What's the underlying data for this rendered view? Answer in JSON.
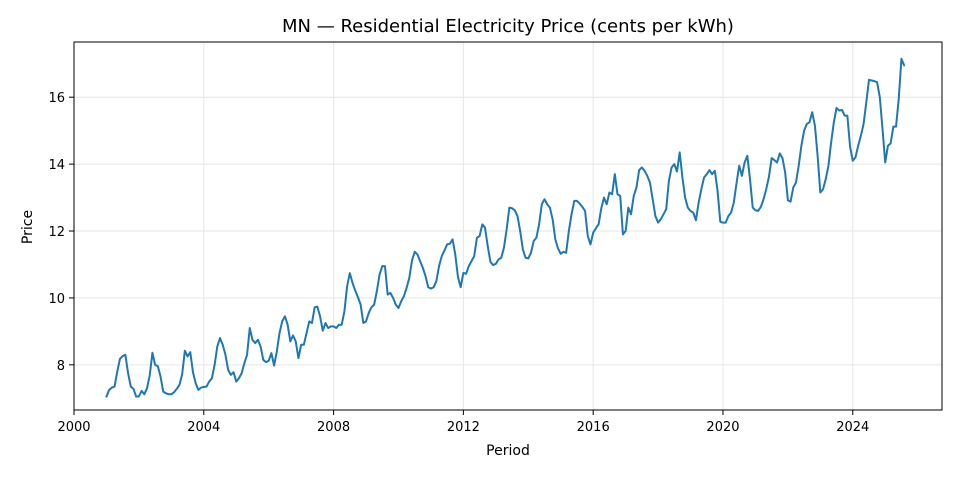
{
  "chart_data": {
    "type": "line",
    "title": "MN — Residential Electricity Price (cents per kWh)",
    "xlabel": "Period",
    "ylabel": "Price",
    "xlim": [
      "2000-01",
      "2026-10"
    ],
    "ylim": [
      6.65,
      17.65
    ],
    "xticks": [
      {
        "label": "2000",
        "value": "2000-01"
      },
      {
        "label": "2004",
        "value": "2004-01"
      },
      {
        "label": "2008",
        "value": "2008-01"
      },
      {
        "label": "2012",
        "value": "2012-01"
      },
      {
        "label": "2016",
        "value": "2016-01"
      },
      {
        "label": "2020",
        "value": "2020-01"
      },
      {
        "label": "2024",
        "value": "2024-01"
      }
    ],
    "yticks": [
      8,
      10,
      12,
      14,
      16
    ],
    "grid": true,
    "legend": "none",
    "line_color": "#1f77b4",
    "series": [
      {
        "start": "2001-01",
        "frequency": "monthly",
        "values": [
          7.05,
          7.25,
          7.32,
          7.35,
          7.8,
          8.18,
          8.26,
          8.3,
          7.75,
          7.35,
          7.28,
          7.05,
          7.06,
          7.22,
          7.12,
          7.3,
          7.68,
          8.36,
          8.0,
          7.96,
          7.65,
          7.2,
          7.15,
          7.12,
          7.12,
          7.18,
          7.28,
          7.4,
          7.72,
          8.42,
          8.25,
          8.38,
          7.78,
          7.45,
          7.25,
          7.32,
          7.34,
          7.35,
          7.5,
          7.6,
          8.0,
          8.55,
          8.8,
          8.6,
          8.3,
          7.85,
          7.7,
          7.78,
          7.5,
          7.6,
          7.75,
          8.05,
          8.3,
          9.1,
          8.75,
          8.65,
          8.75,
          8.55,
          8.15,
          8.08,
          8.12,
          8.35,
          7.98,
          8.4,
          8.95,
          9.3,
          9.45,
          9.2,
          8.7,
          8.88,
          8.7,
          8.2,
          8.6,
          8.6,
          8.95,
          9.3,
          9.25,
          9.72,
          9.74,
          9.45,
          9.02,
          9.25,
          9.1,
          9.15,
          9.15,
          9.1,
          9.2,
          9.2,
          9.6,
          10.35,
          10.74,
          10.45,
          10.22,
          10.02,
          9.8,
          9.25,
          9.3,
          9.55,
          9.72,
          9.8,
          10.2,
          10.7,
          10.95,
          10.95,
          10.1,
          10.15,
          10.0,
          9.8,
          9.7,
          9.9,
          10.05,
          10.3,
          10.6,
          11.12,
          11.38,
          11.3,
          11.1,
          10.9,
          10.65,
          10.32,
          10.28,
          10.32,
          10.5,
          10.95,
          11.25,
          11.42,
          11.6,
          11.62,
          11.75,
          11.3,
          10.62,
          10.32,
          10.75,
          10.72,
          10.95,
          11.1,
          11.25,
          11.8,
          11.85,
          12.2,
          12.1,
          11.55,
          11.08,
          10.98,
          11.02,
          11.15,
          11.2,
          11.5,
          12.05,
          12.7,
          12.68,
          12.62,
          12.45,
          12.0,
          11.45,
          11.2,
          11.18,
          11.35,
          11.7,
          11.8,
          12.2,
          12.8,
          12.95,
          12.8,
          12.7,
          12.35,
          11.75,
          11.48,
          11.32,
          11.38,
          11.35,
          12.0,
          12.5,
          12.9,
          12.9,
          12.82,
          12.72,
          12.6,
          11.85,
          11.6,
          11.95,
          12.08,
          12.2,
          12.68,
          13.0,
          12.8,
          13.15,
          13.1,
          13.7,
          13.1,
          13.05,
          11.9,
          12.0,
          12.7,
          12.5,
          13.05,
          13.3,
          13.82,
          13.9,
          13.8,
          13.65,
          13.45,
          12.95,
          12.45,
          12.25,
          12.35,
          12.5,
          12.65,
          13.5,
          13.9,
          14.0,
          13.78,
          14.35,
          13.6,
          13.0,
          12.7,
          12.6,
          12.55,
          12.32,
          12.85,
          13.25,
          13.6,
          13.7,
          13.82,
          13.7,
          13.8,
          13.2,
          12.28,
          12.25,
          12.25,
          12.45,
          12.55,
          12.85,
          13.42,
          13.95,
          13.65,
          14.05,
          14.25,
          13.55,
          12.7,
          12.62,
          12.6,
          12.72,
          12.95,
          13.25,
          13.62,
          14.18,
          14.12,
          14.05,
          14.32,
          14.18,
          13.75,
          12.92,
          12.88,
          13.3,
          13.45,
          13.95,
          14.55,
          15.0,
          15.2,
          15.25,
          15.55,
          15.15,
          14.25,
          13.15,
          13.25,
          13.55,
          13.95,
          14.65,
          15.25,
          15.68,
          15.6,
          15.62,
          15.45,
          15.45,
          14.52,
          14.1,
          14.2,
          14.55,
          14.85,
          15.2,
          15.85,
          16.52,
          16.5,
          16.48,
          16.45,
          16.0,
          15.05,
          14.05,
          14.55,
          14.62,
          15.12,
          15.12,
          15.95,
          17.15,
          16.95
        ]
      }
    ]
  }
}
